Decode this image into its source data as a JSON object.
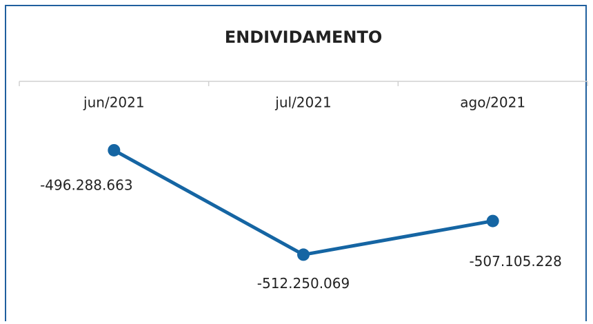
{
  "chart_data": {
    "type": "line",
    "title": "ENDIVIDAMENTO",
    "categories": [
      "jun/2021",
      "jul/2021",
      "ago/2021"
    ],
    "series": [
      {
        "name": "Endividamento",
        "color": "#1565a3",
        "values": [
          -496288663,
          -512250069,
          -507105228
        ],
        "value_labels": [
          "-496.288.663",
          "-512.250.069",
          "-507.105.228"
        ]
      }
    ],
    "ylim": [
      -521800000,
      -485750000
    ]
  }
}
